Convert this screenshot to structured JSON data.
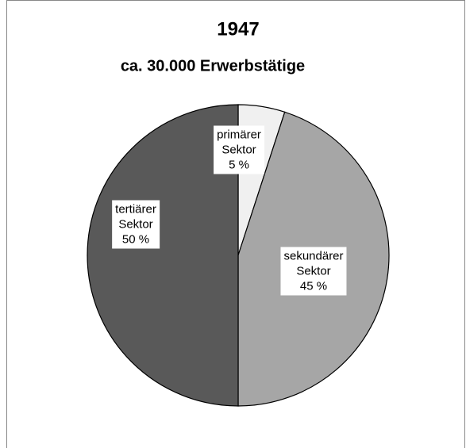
{
  "chart_data": {
    "type": "pie",
    "title": "1947",
    "subtitle": "ca. 30.000 Erwerbstätige",
    "categories": [
      "primärer Sektor",
      "sekundärer Sektor",
      "tertiärer Sektor"
    ],
    "values": [
      5,
      45,
      50
    ],
    "value_labels": [
      "5 %",
      "45 %",
      "50 %"
    ],
    "colors": [
      "#f0f0f0",
      "#a6a6a6",
      "#595959"
    ]
  }
}
